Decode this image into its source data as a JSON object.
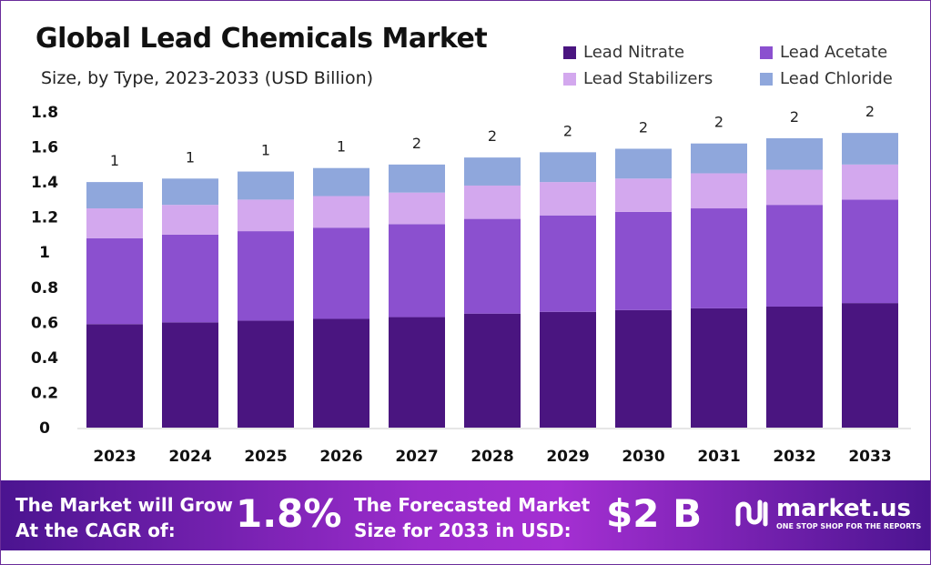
{
  "chart_data": {
    "type": "bar",
    "stacked": true,
    "title": "Global Lead Chemicals Market",
    "subtitle": "Size, by Type, 2023-2033 (USD Billion)",
    "xlabel": "",
    "ylabel": "",
    "ylim": [
      0,
      1.8
    ],
    "yticks": [
      "0",
      "0.2",
      "0.4",
      "0.6",
      "0.8",
      "1",
      "1.2",
      "1.4",
      "1.6",
      "1.8"
    ],
    "categories": [
      "2023",
      "2024",
      "2025",
      "2026",
      "2027",
      "2028",
      "2029",
      "2030",
      "2031",
      "2032",
      "2033"
    ],
    "series": [
      {
        "name": "Lead Nitrate",
        "color": "#4a1580",
        "values": [
          0.59,
          0.6,
          0.61,
          0.62,
          0.63,
          0.65,
          0.66,
          0.67,
          0.68,
          0.69,
          0.71
        ]
      },
      {
        "name": "Lead Acetate",
        "color": "#8b50cf",
        "values": [
          0.49,
          0.5,
          0.51,
          0.52,
          0.53,
          0.54,
          0.55,
          0.56,
          0.57,
          0.58,
          0.59
        ]
      },
      {
        "name": "Lead Stabilizers",
        "color": "#d3a8ee",
        "values": [
          0.17,
          0.17,
          0.18,
          0.18,
          0.18,
          0.19,
          0.19,
          0.19,
          0.2,
          0.2,
          0.2
        ]
      },
      {
        "name": "Lead Chloride",
        "color": "#8fa7dc",
        "values": [
          0.15,
          0.15,
          0.16,
          0.16,
          0.16,
          0.16,
          0.17,
          0.17,
          0.17,
          0.18,
          0.18
        ]
      }
    ],
    "total_labels": [
      "1",
      "1",
      "1",
      "1",
      "2",
      "2",
      "2",
      "2",
      "2",
      "2",
      "2"
    ],
    "legend": "top-right",
    "grid": false
  },
  "banner": {
    "cagr_text_1": "The Market will Grow",
    "cagr_text_2": "At the CAGR of:",
    "cagr_value": "1.8%",
    "forecast_text_1": "The Forecasted Market",
    "forecast_text_2": "Size for 2033 in USD:",
    "forecast_value": "$2 B",
    "logo_text": "market.us",
    "logo_tagline": "ONE STOP SHOP FOR THE REPORTS"
  }
}
